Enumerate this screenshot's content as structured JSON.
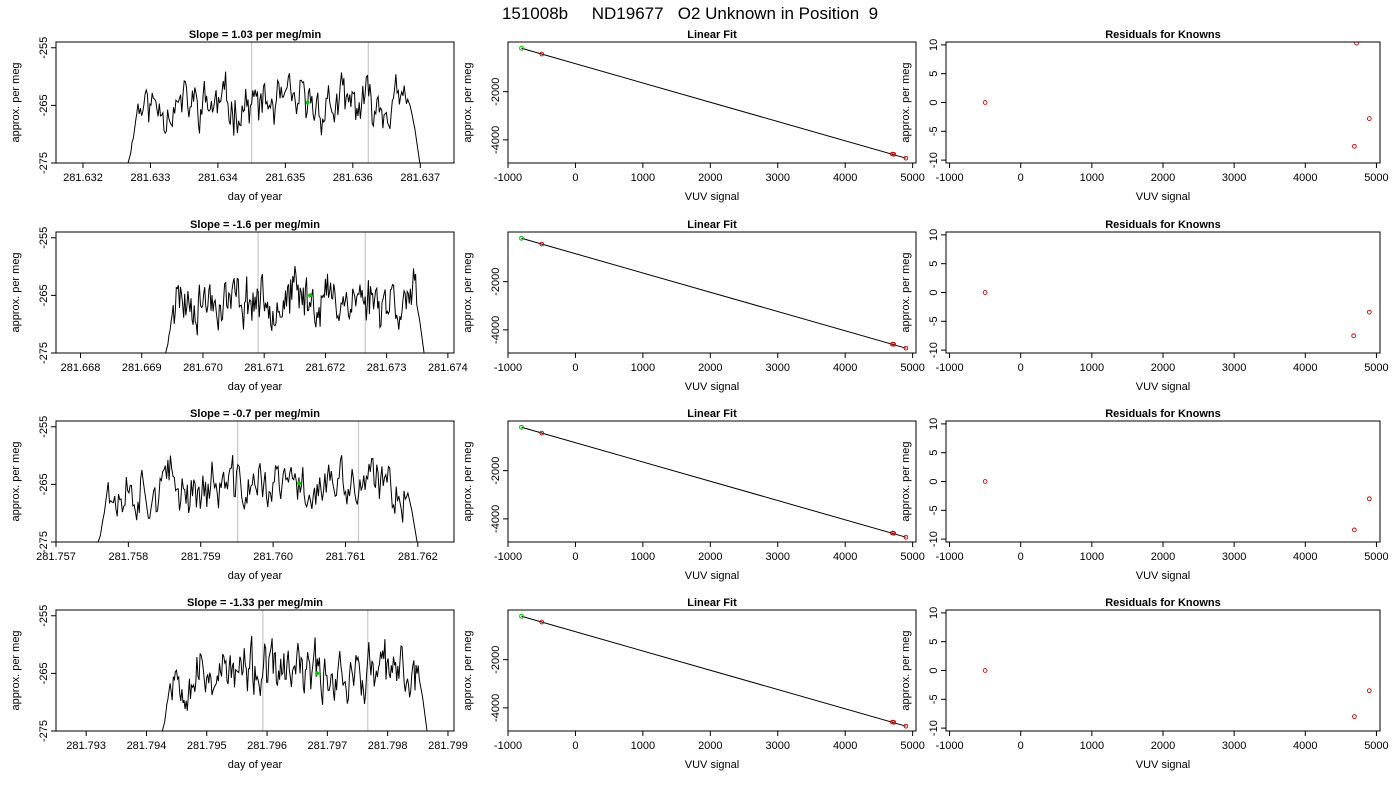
{
  "page_title": "151008b     ND19677   O2 Unknown in Position  9",
  "colors": {
    "trace": "#000000",
    "known_point": "#cc0000",
    "unknown_point": "#00cc00",
    "marker_line": "#c8c8c8",
    "fit_line": "#000000"
  },
  "chart_data": [
    {
      "type": "line",
      "title": "Slope =  1.03  per meg/min",
      "xlabel": "day of year",
      "ylabel": "approx. per meg",
      "xlim": [
        281.6316,
        281.6375
      ],
      "ylim": [
        -275,
        -254
      ],
      "xticks": [
        "281.632",
        "281.633",
        "281.634",
        "281.635",
        "281.636",
        "281.637"
      ],
      "yticks": [
        "-255",
        "-265",
        "-275"
      ],
      "vlines": [
        281.6345,
        281.63623
      ],
      "unknown_point": {
        "x": 281.63533,
        "y": -264.5
      },
      "trace": {
        "x_start": 281.6326,
        "x_end": 281.63703,
        "baseline": -265,
        "amplitude": 2.6,
        "seed": 11
      }
    },
    {
      "type": "scatter",
      "title": "Linear Fit",
      "xlabel": "VUV signal",
      "ylabel": "approx. per meg",
      "xlim": [
        -1000,
        5050
      ],
      "ylim": [
        -4960,
        60
      ],
      "xticks": [
        "-1000",
        "0",
        "1000",
        "2000",
        "3000",
        "4000",
        "5000"
      ],
      "yticks": [
        "-2000",
        "-4000"
      ],
      "fit_line": {
        "x": [
          -800,
          4900
        ],
        "y": [
          -200,
          -4760
        ]
      },
      "known_points": [
        {
          "x": -500,
          "y": -440
        },
        {
          "x": 4700,
          "y": -4590
        },
        {
          "x": 4720,
          "y": -4600
        },
        {
          "x": 4900,
          "y": -4760
        }
      ],
      "unknown_points": [
        {
          "x": -800,
          "y": -200
        }
      ]
    },
    {
      "type": "scatter",
      "title": "Residuals for Knowns",
      "xlabel": "VUV signal",
      "ylabel": "approx. per meg",
      "xlim": [
        -1050,
        5050
      ],
      "ylim": [
        -10.5,
        10.5
      ],
      "xticks": [
        "-1000",
        "0",
        "1000",
        "2000",
        "3000",
        "4000",
        "5000"
      ],
      "yticks": [
        "10",
        "5",
        "0",
        "-5",
        "-10"
      ],
      "known_points": [
        {
          "x": -500,
          "y": 0
        },
        {
          "x": 4720,
          "y": 10.3
        },
        {
          "x": 4900,
          "y": -2.8
        },
        {
          "x": 4690,
          "y": -7.6
        }
      ]
    },
    {
      "type": "line",
      "title": "Slope =  -1.6  per meg/min",
      "xlabel": "day of year",
      "ylabel": "approx. per meg",
      "xlim": [
        281.6676,
        281.6741
      ],
      "ylim": [
        -275,
        -254
      ],
      "xticks": [
        "281.668",
        "281.669",
        "281.670",
        "281.671",
        "281.672",
        "281.673",
        "281.674"
      ],
      "yticks": [
        "-255",
        "-265",
        "-275"
      ],
      "vlines": [
        281.6709,
        281.67265
      ],
      "unknown_point": {
        "x": 281.67175,
        "y": -265
      },
      "trace": {
        "x_start": 281.66932,
        "x_end": 281.67365,
        "baseline": -265.5,
        "amplitude": 2.8,
        "seed": 23
      }
    },
    {
      "type": "scatter",
      "title": "Linear Fit",
      "xlabel": "VUV signal",
      "ylabel": "approx. per meg",
      "xlim": [
        -1000,
        5050
      ],
      "ylim": [
        -4960,
        60
      ],
      "xticks": [
        "-1000",
        "0",
        "1000",
        "2000",
        "3000",
        "4000",
        "5000"
      ],
      "yticks": [
        "-2000",
        "-4000"
      ],
      "fit_line": {
        "x": [
          -800,
          4900
        ],
        "y": [
          -200,
          -4760
        ]
      },
      "known_points": [
        {
          "x": -500,
          "y": -440
        },
        {
          "x": 4700,
          "y": -4590
        },
        {
          "x": 4720,
          "y": -4600
        },
        {
          "x": 4900,
          "y": -4760
        }
      ],
      "unknown_points": [
        {
          "x": -800,
          "y": -200
        }
      ]
    },
    {
      "type": "scatter",
      "title": "Residuals for Knowns",
      "xlabel": "VUV signal",
      "ylabel": "approx. per meg",
      "xlim": [
        -1050,
        5050
      ],
      "ylim": [
        -10.5,
        10.5
      ],
      "xticks": [
        "-1000",
        "0",
        "1000",
        "2000",
        "3000",
        "4000",
        "5000"
      ],
      "yticks": [
        "10",
        "5",
        "0",
        "-5",
        "-10"
      ],
      "known_points": [
        {
          "x": -500,
          "y": 0
        },
        {
          "x": 4900,
          "y": -3.4
        },
        {
          "x": 4680,
          "y": -7.5
        }
      ]
    },
    {
      "type": "line",
      "title": "Slope =  -0.7  per meg/min",
      "xlabel": "day of year",
      "ylabel": "approx. per meg",
      "xlim": [
        281.757,
        281.7625
      ],
      "ylim": [
        -275,
        -254
      ],
      "xticks": [
        "281.757",
        "281.758",
        "281.759",
        "281.760",
        "281.761",
        "281.762"
      ],
      "yticks": [
        "-255",
        "-265",
        "-275"
      ],
      "vlines": [
        281.75951,
        281.76118
      ],
      "unknown_point": {
        "x": 281.76036,
        "y": -264.8
      },
      "trace": {
        "x_start": 281.7575,
        "x_end": 281.76203,
        "baseline": -265.5,
        "amplitude": 2.9,
        "seed": 37
      }
    },
    {
      "type": "scatter",
      "title": "Linear Fit",
      "xlabel": "VUV signal",
      "ylabel": "approx. per meg",
      "xlim": [
        -1000,
        5050
      ],
      "ylim": [
        -4960,
        60
      ],
      "xticks": [
        "-1000",
        "0",
        "1000",
        "2000",
        "3000",
        "4000",
        "5000"
      ],
      "yticks": [
        "-2000",
        "-4000"
      ],
      "fit_line": {
        "x": [
          -800,
          4900
        ],
        "y": [
          -200,
          -4760
        ]
      },
      "known_points": [
        {
          "x": -500,
          "y": -440
        },
        {
          "x": 4700,
          "y": -4590
        },
        {
          "x": 4720,
          "y": -4600
        },
        {
          "x": 4900,
          "y": -4760
        }
      ],
      "unknown_points": [
        {
          "x": -800,
          "y": -200
        }
      ]
    },
    {
      "type": "scatter",
      "title": "Residuals for Knowns",
      "xlabel": "VUV signal",
      "ylabel": "approx. per meg",
      "xlim": [
        -1050,
        5050
      ],
      "ylim": [
        -10.5,
        10.5
      ],
      "xticks": [
        "-1000",
        "0",
        "1000",
        "2000",
        "3000",
        "4000",
        "5000"
      ],
      "yticks": [
        "10",
        "5",
        "0",
        "-5",
        "-10"
      ],
      "known_points": [
        {
          "x": -500,
          "y": 0
        },
        {
          "x": 4900,
          "y": -3.0
        },
        {
          "x": 4690,
          "y": -8.4
        }
      ]
    },
    {
      "type": "line",
      "title": "Slope =  -1.33  per meg/min",
      "xlabel": "day of year",
      "ylabel": "approx. per meg",
      "xlim": [
        281.7925,
        281.7991
      ],
      "ylim": [
        -275,
        -254
      ],
      "xticks": [
        "281.793",
        "281.794",
        "281.795",
        "281.796",
        "281.797",
        "281.798",
        "281.799"
      ],
      "yticks": [
        "-255",
        "-265",
        "-275"
      ],
      "vlines": [
        281.79593,
        281.79767
      ],
      "unknown_point": {
        "x": 281.79683,
        "y": -265
      },
      "trace": {
        "x_start": 281.79419,
        "x_end": 281.79869,
        "baseline": -265,
        "amplitude": 2.9,
        "seed": 53
      }
    },
    {
      "type": "scatter",
      "title": "Linear Fit",
      "xlabel": "VUV signal",
      "ylabel": "approx. per meg",
      "xlim": [
        -1000,
        5050
      ],
      "ylim": [
        -4960,
        60
      ],
      "xticks": [
        "-1000",
        "0",
        "1000",
        "2000",
        "3000",
        "4000",
        "5000"
      ],
      "yticks": [
        "-2000",
        "-4000"
      ],
      "fit_line": {
        "x": [
          -800,
          4900
        ],
        "y": [
          -200,
          -4760
        ]
      },
      "known_points": [
        {
          "x": -500,
          "y": -440
        },
        {
          "x": 4700,
          "y": -4590
        },
        {
          "x": 4720,
          "y": -4600
        },
        {
          "x": 4900,
          "y": -4760
        }
      ],
      "unknown_points": [
        {
          "x": -800,
          "y": -200
        }
      ]
    },
    {
      "type": "scatter",
      "title": "Residuals for Knowns",
      "xlabel": "VUV signal",
      "ylabel": "approx. per meg",
      "xlim": [
        -1050,
        5050
      ],
      "ylim": [
        -10.5,
        10.5
      ],
      "xticks": [
        "-1000",
        "0",
        "1000",
        "2000",
        "3000",
        "4000",
        "5000"
      ],
      "yticks": [
        "10",
        "5",
        "0",
        "-5",
        "-10"
      ],
      "known_points": [
        {
          "x": -500,
          "y": 0
        },
        {
          "x": 4900,
          "y": -3.5
        },
        {
          "x": 4690,
          "y": -8.0
        }
      ]
    }
  ]
}
